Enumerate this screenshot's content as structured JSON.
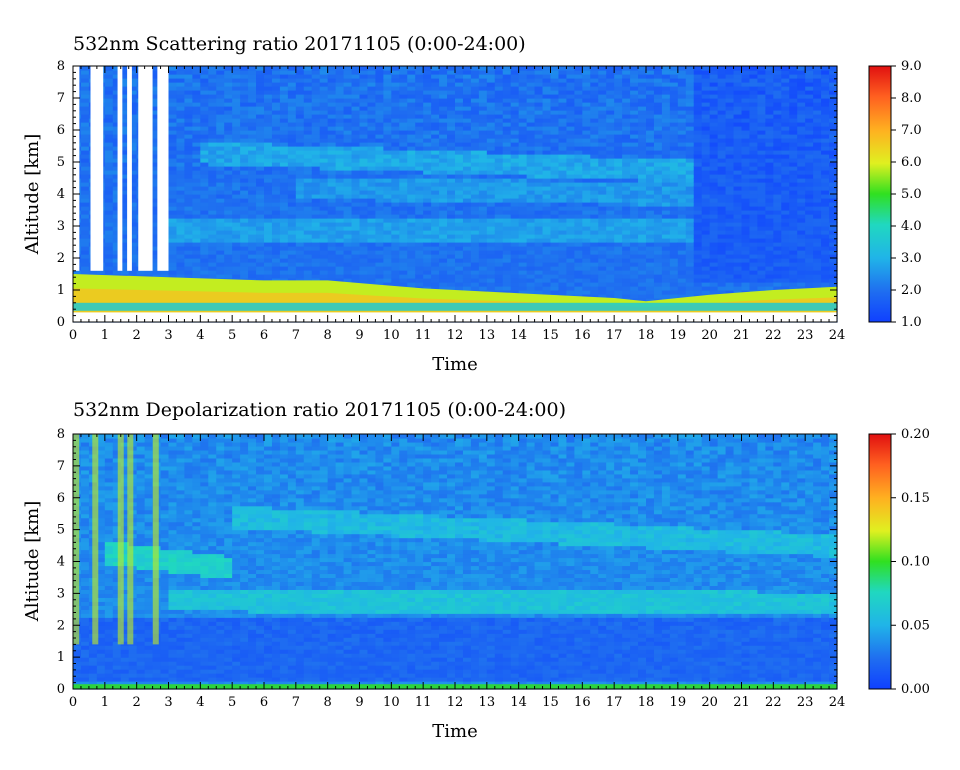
{
  "chart_data": [
    {
      "type": "heatmap",
      "title": "532nm Scattering ratio  20171105 (0:00-24:00)",
      "xlabel": "Time",
      "ylabel": "Altitude [km]",
      "xlim": [
        0,
        24
      ],
      "ylim": [
        0,
        8
      ],
      "x_ticks": [
        "0",
        "1",
        "2",
        "3",
        "4",
        "5",
        "6",
        "7",
        "8",
        "9",
        "10",
        "11",
        "12",
        "13",
        "14",
        "15",
        "16",
        "17",
        "18",
        "19",
        "20",
        "21",
        "22",
        "23",
        "24"
      ],
      "y_ticks": [
        "0",
        "1",
        "2",
        "3",
        "4",
        "5",
        "6",
        "7",
        "8"
      ],
      "colorbar": {
        "range": [
          1.0,
          9.0
        ],
        "ticks": [
          "1.0",
          "2.0",
          "3.0",
          "4.0",
          "5.0",
          "6.0",
          "7.0",
          "8.0",
          "9.0"
        ]
      },
      "background_value": 2.0,
      "features": [
        {
          "kind": "boundary_layer",
          "times": [
            0,
            3,
            6,
            8,
            11,
            14,
            17,
            18,
            20,
            22,
            24
          ],
          "top_km": [
            1.5,
            1.4,
            1.3,
            1.3,
            1.05,
            0.9,
            0.75,
            0.65,
            0.85,
            1.0,
            1.1
          ],
          "value": 5.8
        },
        {
          "kind": "surface_layer",
          "range_km": [
            0.35,
            0.6
          ],
          "value": 3.6
        },
        {
          "kind": "layer",
          "t_start": 4,
          "t_end": 20,
          "center_start_km": 5.3,
          "center_end_km": 4.7,
          "value": 2.8
        },
        {
          "kind": "layer",
          "t_start": 3,
          "t_end": 20,
          "center_start_km": 2.9,
          "center_end_km": 2.9,
          "value": 2.7
        },
        {
          "kind": "layer",
          "t_start": 7,
          "t_end": 20,
          "center_start_km": 4.2,
          "center_end_km": 4.0,
          "value": 2.6
        },
        {
          "kind": "no_data_gaps",
          "intervals": [
            [
              0.0,
              0.2
            ],
            [
              0.55,
              0.95
            ],
            [
              1.4,
              1.55
            ],
            [
              1.7,
              1.85
            ],
            [
              2.05,
              2.5
            ],
            [
              2.65,
              3.0
            ]
          ],
          "above_km": 1.6
        },
        {
          "kind": "no_data_gaps",
          "intervals": [
            [
              0,
              24
            ]
          ],
          "range_km": [
            0.0,
            0.3
          ]
        },
        {
          "kind": "darker_region",
          "t_start": 19.5,
          "t_end": 24,
          "value": 1.6
        }
      ]
    },
    {
      "type": "heatmap",
      "title": "532nm Depolarization ratio  20171105 (0:00-24:00)",
      "xlabel": "Time",
      "ylabel": "Altitude [km]",
      "xlim": [
        0,
        24
      ],
      "ylim": [
        0,
        8
      ],
      "x_ticks": [
        "0",
        "1",
        "2",
        "3",
        "4",
        "5",
        "6",
        "7",
        "8",
        "9",
        "10",
        "11",
        "12",
        "13",
        "14",
        "15",
        "16",
        "17",
        "18",
        "19",
        "20",
        "21",
        "22",
        "23",
        "24"
      ],
      "y_ticks": [
        "0",
        "1",
        "2",
        "3",
        "4",
        "5",
        "6",
        "7",
        "8"
      ],
      "colorbar": {
        "range": [
          0.0,
          0.2
        ],
        "ticks": [
          "0.00",
          "0.05",
          "0.10",
          "0.15",
          "0.20"
        ]
      },
      "background_value": 0.035,
      "features": [
        {
          "kind": "layer",
          "t_start": 5,
          "t_end": 24,
          "center_start_km": 5.4,
          "center_end_km": 4.5,
          "value": 0.055
        },
        {
          "kind": "layer",
          "t_start": 3,
          "t_end": 24,
          "center_start_km": 2.8,
          "center_end_km": 2.7,
          "value": 0.06
        },
        {
          "kind": "layer",
          "t_start": 1,
          "t_end": 5,
          "center_start_km": 4.3,
          "center_end_km": 3.8,
          "value": 0.07
        },
        {
          "kind": "low_region",
          "range_km": [
            0.3,
            2.2
          ],
          "value": 0.02
        },
        {
          "kind": "surface_layer",
          "range_km": [
            0.0,
            0.15
          ],
          "value": 0.1
        },
        {
          "kind": "streaks",
          "times": [
            0.1,
            0.7,
            1.5,
            1.8,
            2.6
          ],
          "top_km": 8,
          "value": 0.12
        }
      ]
    }
  ]
}
